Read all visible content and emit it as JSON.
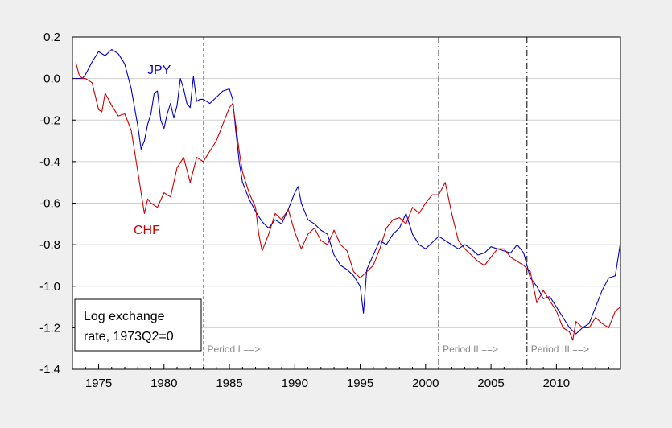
{
  "chart_data": {
    "type": "line",
    "title": "",
    "xlabel": "",
    "ylabel": "",
    "xlim": [
      1973.0,
      2014.9
    ],
    "ylim": [
      -1.4,
      0.2
    ],
    "x_ticks": [
      1975,
      1980,
      1985,
      1990,
      1995,
      2000,
      2005,
      2010
    ],
    "y_ticks": [
      0.2,
      0.0,
      -0.2,
      -0.4,
      -0.6,
      -0.8,
      -1.0,
      -1.2,
      -1.4
    ],
    "y_tick_labels": [
      "0.2",
      "0.0",
      "-0.2",
      "-0.4",
      "-0.6",
      "-0.8",
      "-1.0",
      "-1.2",
      "-1.4"
    ],
    "grid": "horizontal",
    "legend_box": {
      "line1": "Log exchange",
      "line2": "rate, 1973Q2=0"
    },
    "series": [
      {
        "name": "JPY",
        "color": "#0000cc",
        "x": [
          1973.25,
          1973.75,
          1974.0,
          1974.5,
          1975.0,
          1975.5,
          1976.0,
          1976.5,
          1977.0,
          1977.5,
          1978.0,
          1978.25,
          1978.5,
          1978.75,
          1979.0,
          1979.25,
          1979.5,
          1979.75,
          1980.0,
          1980.25,
          1980.5,
          1980.75,
          1981.0,
          1981.25,
          1981.5,
          1981.75,
          1982.0,
          1982.25,
          1982.5,
          1982.75,
          1983.0,
          1983.5,
          1984.0,
          1984.5,
          1985.0,
          1985.25,
          1985.5,
          1985.75,
          1986.0,
          1986.5,
          1987.0,
          1987.5,
          1988.0,
          1988.5,
          1989.0,
          1989.5,
          1990.0,
          1990.25,
          1990.5,
          1991.0,
          1991.5,
          1992.0,
          1992.5,
          1993.0,
          1993.5,
          1994.0,
          1994.5,
          1995.0,
          1995.25,
          1995.5,
          1996.0,
          1996.5,
          1997.0,
          1997.5,
          1998.0,
          1998.5,
          1999.0,
          1999.5,
          2000.0,
          2000.5,
          2001.0,
          2001.5,
          2002.0,
          2002.5,
          2003.0,
          2003.5,
          2004.0,
          2004.5,
          2005.0,
          2005.5,
          2006.0,
          2006.5,
          2007.0,
          2007.5,
          2008.0,
          2008.5,
          2009.0,
          2009.5,
          2010.0,
          2010.5,
          2011.0,
          2011.5,
          2012.0,
          2012.5,
          2013.0,
          2013.5,
          2014.0,
          2014.5,
          2014.9
        ],
        "y": [
          0.0,
          0.0,
          0.02,
          0.08,
          0.13,
          0.11,
          0.14,
          0.12,
          0.07,
          -0.05,
          -0.23,
          -0.34,
          -0.3,
          -0.22,
          -0.17,
          -0.07,
          -0.06,
          -0.2,
          -0.24,
          -0.17,
          -0.12,
          -0.19,
          -0.13,
          0.0,
          -0.05,
          -0.12,
          -0.14,
          0.01,
          -0.11,
          -0.1,
          -0.1,
          -0.12,
          -0.09,
          -0.06,
          -0.05,
          -0.1,
          -0.26,
          -0.4,
          -0.5,
          -0.58,
          -0.64,
          -0.69,
          -0.72,
          -0.68,
          -0.7,
          -0.63,
          -0.55,
          -0.52,
          -0.6,
          -0.68,
          -0.7,
          -0.73,
          -0.75,
          -0.85,
          -0.9,
          -0.92,
          -0.95,
          -1.0,
          -1.13,
          -0.92,
          -0.85,
          -0.78,
          -0.8,
          -0.75,
          -0.72,
          -0.65,
          -0.75,
          -0.8,
          -0.82,
          -0.79,
          -0.76,
          -0.78,
          -0.8,
          -0.82,
          -0.8,
          -0.82,
          -0.85,
          -0.84,
          -0.81,
          -0.82,
          -0.83,
          -0.84,
          -0.8,
          -0.84,
          -0.96,
          -1.0,
          -1.06,
          -1.05,
          -1.1,
          -1.15,
          -1.2,
          -1.23,
          -1.2,
          -1.18,
          -1.1,
          -1.02,
          -0.96,
          -0.95,
          -0.79
        ]
      },
      {
        "name": "CHF",
        "color": "#cc0000",
        "x": [
          1973.25,
          1973.5,
          1973.75,
          1974.0,
          1974.5,
          1975.0,
          1975.25,
          1975.5,
          1976.0,
          1976.5,
          1977.0,
          1977.5,
          1978.0,
          1978.25,
          1978.5,
          1978.75,
          1979.0,
          1979.5,
          1980.0,
          1980.5,
          1981.0,
          1981.5,
          1982.0,
          1982.5,
          1983.0,
          1983.5,
          1984.0,
          1984.5,
          1985.0,
          1985.25,
          1985.5,
          1985.75,
          1986.0,
          1986.5,
          1987.0,
          1987.25,
          1987.5,
          1988.0,
          1988.5,
          1989.0,
          1989.5,
          1990.0,
          1990.5,
          1991.0,
          1991.5,
          1992.0,
          1992.5,
          1993.0,
          1993.5,
          1994.0,
          1994.5,
          1995.0,
          1995.5,
          1996.0,
          1996.5,
          1997.0,
          1997.5,
          1998.0,
          1998.5,
          1999.0,
          1999.5,
          2000.0,
          2000.5,
          2001.0,
          2001.5,
          2002.0,
          2002.5,
          2003.0,
          2003.5,
          2004.0,
          2004.5,
          2005.0,
          2005.5,
          2006.0,
          2006.5,
          2007.0,
          2007.5,
          2008.0,
          2008.5,
          2009.0,
          2009.5,
          2010.0,
          2010.5,
          2011.0,
          2011.25,
          2011.5,
          2012.0,
          2012.5,
          2013.0,
          2013.5,
          2014.0,
          2014.5,
          2014.9
        ],
        "y": [
          0.08,
          0.02,
          0.0,
          0.0,
          -0.02,
          -0.15,
          -0.16,
          -0.07,
          -0.13,
          -0.18,
          -0.17,
          -0.25,
          -0.45,
          -0.55,
          -0.65,
          -0.58,
          -0.6,
          -0.62,
          -0.55,
          -0.57,
          -0.43,
          -0.38,
          -0.5,
          -0.38,
          -0.4,
          -0.35,
          -0.3,
          -0.22,
          -0.14,
          -0.12,
          -0.23,
          -0.35,
          -0.45,
          -0.55,
          -0.62,
          -0.75,
          -0.83,
          -0.75,
          -0.65,
          -0.68,
          -0.63,
          -0.74,
          -0.82,
          -0.75,
          -0.72,
          -0.78,
          -0.8,
          -0.73,
          -0.8,
          -0.83,
          -0.93,
          -0.96,
          -0.93,
          -0.9,
          -0.82,
          -0.72,
          -0.68,
          -0.67,
          -0.7,
          -0.62,
          -0.65,
          -0.6,
          -0.56,
          -0.56,
          -0.5,
          -0.65,
          -0.78,
          -0.82,
          -0.85,
          -0.88,
          -0.9,
          -0.86,
          -0.82,
          -0.82,
          -0.86,
          -0.88,
          -0.9,
          -0.93,
          -1.08,
          -1.02,
          -1.07,
          -1.12,
          -1.2,
          -1.22,
          -1.26,
          -1.17,
          -1.2,
          -1.2,
          -1.15,
          -1.18,
          -1.2,
          -1.12,
          -1.1
        ]
      }
    ],
    "vertical_lines": [
      {
        "x": 1983.0,
        "style": "dashed-gray",
        "label": "Period I ==>"
      },
      {
        "x": 2001.0,
        "style": "dashdot-black",
        "label": "Period II ==>"
      },
      {
        "x": 2007.75,
        "style": "dashdot-black",
        "label": "Period III ==>"
      }
    ]
  }
}
